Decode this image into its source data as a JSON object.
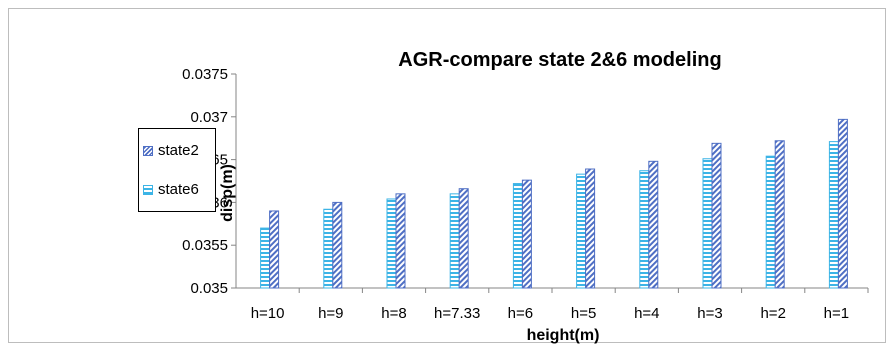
{
  "chart_data": {
    "type": "bar",
    "title": "AGR-compare  state 2&6 modeling",
    "xlabel": "height(m)",
    "ylabel": "disp(m)",
    "categories": [
      "h=10",
      "h=9",
      "h=8",
      "h=7.33",
      "h=6",
      "h=5",
      "h=4",
      "h=3",
      "h=2",
      "h=1"
    ],
    "ylim": [
      0.035,
      0.0375
    ],
    "yticks": [
      0.035,
      0.0355,
      0.036,
      0.0365,
      0.037,
      0.0375
    ],
    "ytick_labels": [
      "0.035",
      "0.0355",
      "0.036",
      "0.0365",
      "0.037",
      "0.0375"
    ],
    "grid": false,
    "legend": "left",
    "series": [
      {
        "name": "state6",
        "color": "#3cb4e6",
        "pattern": "horizontal-stripes",
        "values": [
          0.0357,
          0.03592,
          0.03604,
          0.0361,
          0.03622,
          0.03633,
          0.03637,
          0.03651,
          0.03654,
          0.03671
        ]
      },
      {
        "name": "state2",
        "color": "#4f6fc4",
        "pattern": "diagonal-stripes",
        "values": [
          0.0359,
          0.036,
          0.0361,
          0.03616,
          0.03626,
          0.03639,
          0.03648,
          0.03669,
          0.03672,
          0.03697
        ]
      }
    ]
  }
}
